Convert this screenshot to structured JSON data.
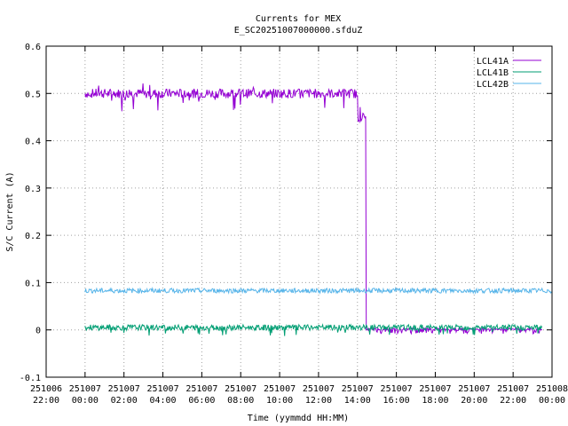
{
  "chart_data": {
    "type": "line",
    "title": "Currents for MEX",
    "subtitle": "E_SC20251007000000.sfduZ",
    "xlabel": "Time (yymmdd HH:MM)",
    "ylabel": "S/C Current (A)",
    "ylim": [
      -0.1,
      0.6
    ],
    "yticks": [
      "-0.1",
      "0",
      "0.1",
      "0.2",
      "0.3",
      "0.4",
      "0.5",
      "0.6"
    ],
    "xlim_hours": [
      -2,
      24
    ],
    "xticks": [
      {
        "date": "251006",
        "time": "22:00"
      },
      {
        "date": "251007",
        "time": "00:00"
      },
      {
        "date": "251007",
        "time": "02:00"
      },
      {
        "date": "251007",
        "time": "04:00"
      },
      {
        "date": "251007",
        "time": "06:00"
      },
      {
        "date": "251007",
        "time": "08:00"
      },
      {
        "date": "251007",
        "time": "10:00"
      },
      {
        "date": "251007",
        "time": "12:00"
      },
      {
        "date": "251007",
        "time": "14:00"
      },
      {
        "date": "251007",
        "time": "16:00"
      },
      {
        "date": "251007",
        "time": "18:00"
      },
      {
        "date": "251007",
        "time": "20:00"
      },
      {
        "date": "251007",
        "time": "22:00"
      },
      {
        "date": "251008",
        "time": "00:00"
      }
    ],
    "grid": true,
    "legend_position": "top-right",
    "series": [
      {
        "name": "LCL41A",
        "color": "#9400d3",
        "x": [
          "251007 00:00",
          "251007 02:00",
          "251007 04:00",
          "251007 06:00",
          "251007 08:00",
          "251007 10:00",
          "251007 12:00",
          "251007 14:00",
          "251007 14:25",
          "251007 14:30",
          "251007 16:00",
          "251007 18:00",
          "251007 20:00",
          "251007 22:00",
          "251007 23:30"
        ],
        "values": [
          0.5,
          0.5,
          0.5,
          0.5,
          0.5,
          0.5,
          0.5,
          0.5,
          0.45,
          0.0,
          0.0,
          0.0,
          0.0,
          0.0,
          0.0
        ]
      },
      {
        "name": "LCL41B",
        "color": "#009e73",
        "x": [
          "251007 00:00",
          "251007 04:00",
          "251007 08:00",
          "251007 12:00",
          "251007 16:00",
          "251007 20:00",
          "251007 23:30"
        ],
        "values": [
          0.005,
          0.005,
          0.005,
          0.005,
          0.005,
          0.005,
          0.005
        ]
      },
      {
        "name": "LCL42B",
        "color": "#56b4e9",
        "x": [
          "251007 00:00",
          "251007 04:00",
          "251007 08:00",
          "251007 12:00",
          "251007 16:00",
          "251007 20:00",
          "251007 24:00"
        ],
        "values": [
          0.083,
          0.083,
          0.083,
          0.083,
          0.083,
          0.083,
          0.083
        ]
      }
    ]
  }
}
